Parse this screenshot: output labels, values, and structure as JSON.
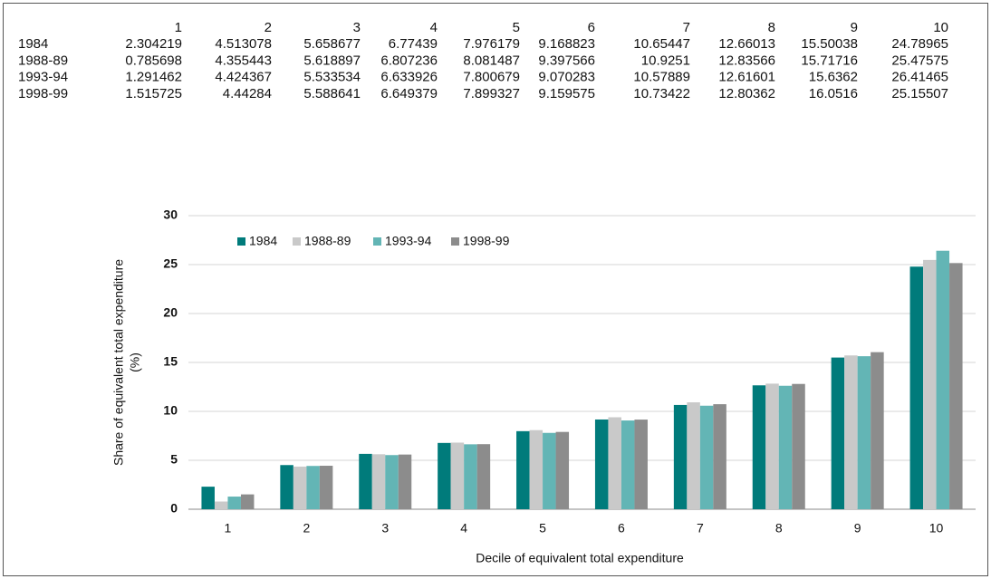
{
  "chart_data": {
    "type": "bar",
    "categories": [
      "1",
      "2",
      "3",
      "4",
      "5",
      "6",
      "7",
      "8",
      "9",
      "10"
    ],
    "series": [
      {
        "name": "1984",
        "color": "#007b7b",
        "values": [
          2.304219,
          4.513078,
          5.658677,
          6.77439,
          7.976179,
          9.168823,
          10.65447,
          12.66013,
          15.50038,
          24.78965
        ]
      },
      {
        "name": "1988-89",
        "color": "#c9c9c9",
        "values": [
          0.785698,
          4.355443,
          5.618897,
          6.807236,
          8.081487,
          9.397566,
          10.9251,
          12.83566,
          15.71716,
          25.47575
        ]
      },
      {
        "name": "1993-94",
        "color": "#63b5b5",
        "values": [
          1.291462,
          4.424367,
          5.533534,
          6.633926,
          7.800679,
          9.070283,
          10.57889,
          12.61601,
          15.6362,
          26.41465
        ]
      },
      {
        "name": "1998-99",
        "color": "#8c8c8c",
        "values": [
          1.515725,
          4.44284,
          5.588641,
          6.649379,
          7.899327,
          9.159575,
          10.73422,
          12.80362,
          16.0516,
          25.15507
        ]
      }
    ],
    "x_label": "Decile of equivalent total expenditure",
    "y_label": [
      "Share of equivalent total expenditure",
      "(%)"
    ],
    "ylim": [
      0,
      30
    ],
    "yticks": [
      0,
      5,
      10,
      15,
      20,
      25,
      30
    ],
    "grid": true,
    "legend": "top-left"
  }
}
